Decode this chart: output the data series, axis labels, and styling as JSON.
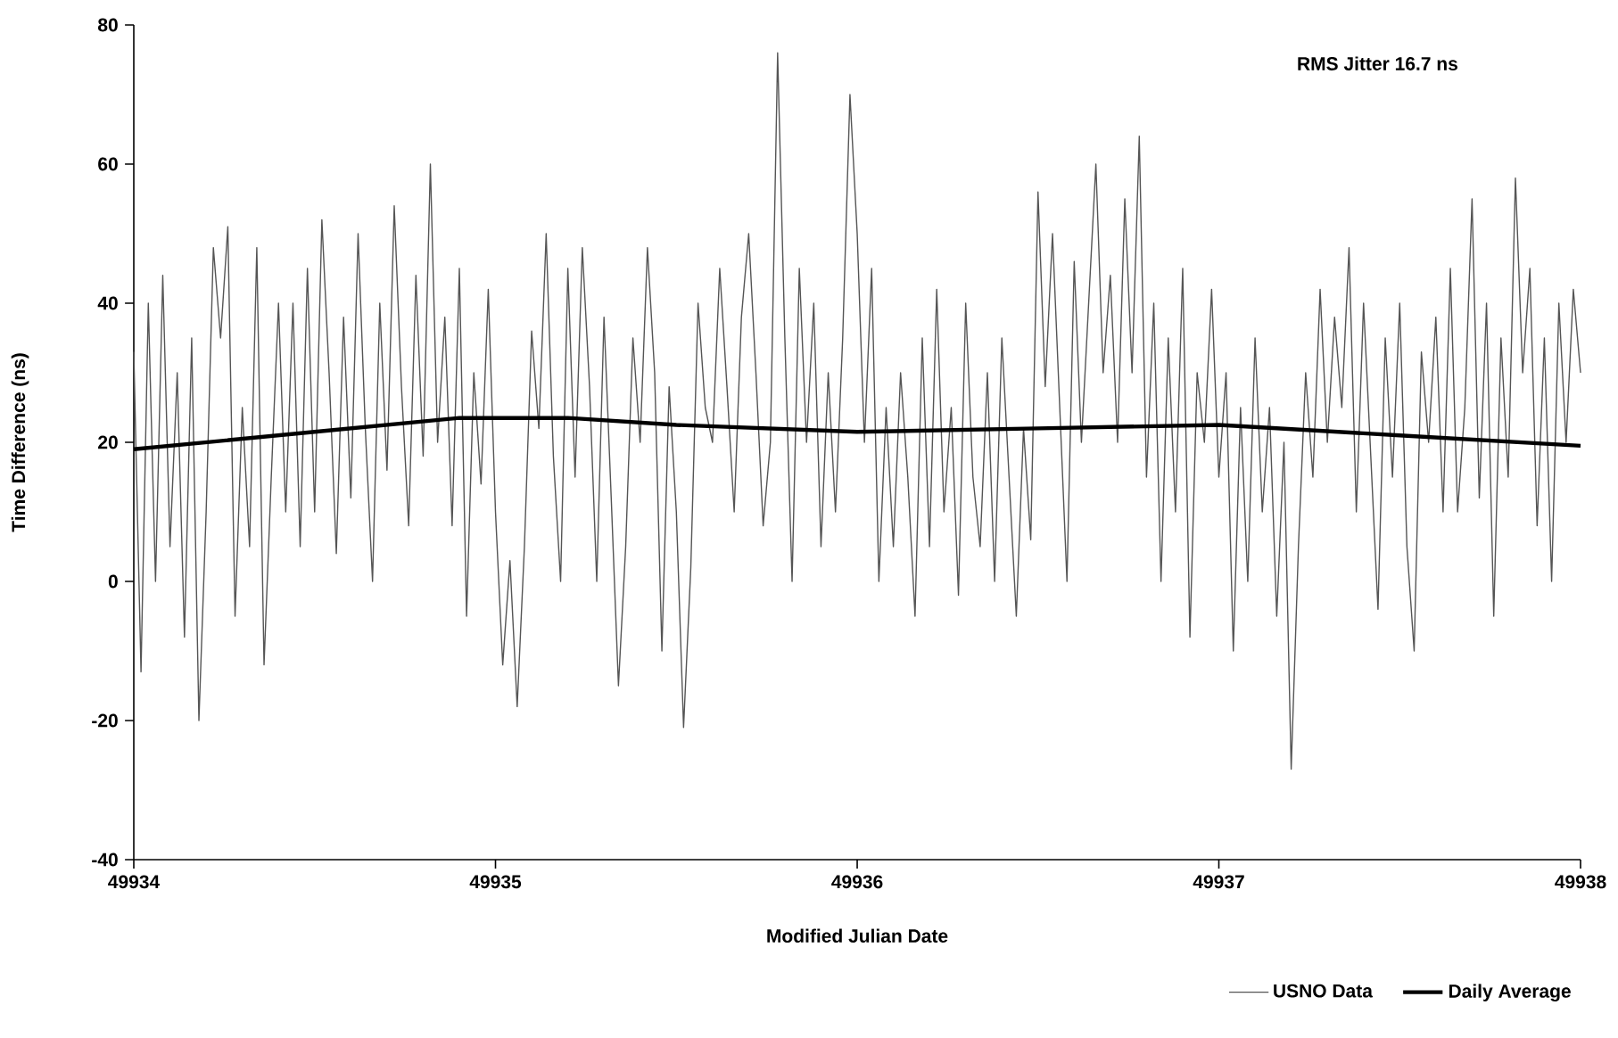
{
  "chart_data": {
    "type": "line",
    "xlabel": "Modified Julian Date",
    "ylabel": "Time Difference (ns)",
    "xlim": [
      49934,
      49938
    ],
    "ylim": [
      -40,
      80
    ],
    "xticks": [
      49934,
      49935,
      49936,
      49937,
      49938
    ],
    "yticks": [
      -40,
      -20,
      0,
      20,
      40,
      60,
      80
    ],
    "legend": "bottom right",
    "annotations": [
      "RMS Jitter 16.7 ns"
    ],
    "series": [
      {
        "name": "USNO Data",
        "color": "#555555",
        "x": [
          49934,
          49934.02,
          49934.04,
          49934.06,
          49934.08,
          49934.1,
          49934.12,
          49934.14,
          49934.16,
          49934.18,
          49934.2,
          49934.22,
          49934.24,
          49934.26,
          49934.28,
          49934.3,
          49934.32,
          49934.34,
          49934.36,
          49934.38,
          49934.4,
          49934.42,
          49934.44,
          49934.46,
          49934.48,
          49934.5,
          49934.52,
          49934.54,
          49934.56,
          49934.58,
          49934.6,
          49934.62,
          49934.64,
          49934.66,
          49934.68,
          49934.7,
          49934.72,
          49934.74,
          49934.76,
          49934.78,
          49934.8,
          49934.82,
          49934.84,
          49934.86,
          49934.88,
          49934.9,
          49934.92,
          49934.94,
          49934.96,
          49934.98,
          49935,
          49935.02,
          49935.04,
          49935.06,
          49935.08,
          49935.1,
          49935.12,
          49935.14,
          49935.16,
          49935.18,
          49935.2,
          49935.22,
          49935.24,
          49935.26,
          49935.28,
          49935.3,
          49935.32,
          49935.34,
          49935.36,
          49935.38,
          49935.4,
          49935.42,
          49935.44,
          49935.46,
          49935.48,
          49935.5,
          49935.52,
          49935.54,
          49935.56,
          49935.58,
          49935.6,
          49935.62,
          49935.64,
          49935.66,
          49935.68,
          49935.7,
          49935.72,
          49935.74,
          49935.76,
          49935.78,
          49935.8,
          49935.82,
          49935.84,
          49935.86,
          49935.88,
          49935.9,
          49935.92,
          49935.94,
          49935.96,
          49935.98,
          49936,
          49936.02,
          49936.04,
          49936.06,
          49936.08,
          49936.1,
          49936.12,
          49936.14,
          49936.16,
          49936.18,
          49936.2,
          49936.22,
          49936.24,
          49936.26,
          49936.28,
          49936.3,
          49936.32,
          49936.34,
          49936.36,
          49936.38,
          49936.4,
          49936.42,
          49936.44,
          49936.46,
          49936.48,
          49936.5,
          49936.52,
          49936.54,
          49936.56,
          49936.58,
          49936.6,
          49936.62,
          49936.64,
          49936.66,
          49936.68,
          49936.7,
          49936.72,
          49936.74,
          49936.76,
          49936.78,
          49936.8,
          49936.82,
          49936.84,
          49936.86,
          49936.88,
          49936.9,
          49936.92,
          49936.94,
          49936.96,
          49936.98,
          49937,
          49937.02,
          49937.04,
          49937.06,
          49937.08,
          49937.1,
          49937.12,
          49937.14,
          49937.16,
          49937.18,
          49937.2,
          49937.22,
          49937.24,
          49937.26,
          49937.28,
          49937.3,
          49937.32,
          49937.34,
          49937.36,
          49937.38,
          49937.4,
          49937.42,
          49937.44,
          49937.46,
          49937.48,
          49937.5,
          49937.52,
          49937.54,
          49937.56,
          49937.58,
          49937.6,
          49937.62,
          49937.64,
          49937.66,
          49937.68,
          49937.7,
          49937.72,
          49937.74,
          49937.76,
          49937.78,
          49937.8,
          49937.82,
          49937.84,
          49937.86,
          49937.88,
          49937.9,
          49937.92,
          49937.94,
          49937.96,
          49937.98,
          49938
        ],
        "values": [
          33,
          -13,
          40,
          0,
          44,
          5,
          30,
          -8,
          35,
          -20,
          10,
          48,
          35,
          51,
          -5,
          25,
          5,
          48,
          -12,
          15,
          40,
          10,
          40,
          5,
          45,
          10,
          52,
          30,
          4,
          38,
          12,
          50,
          22,
          0,
          40,
          16,
          54,
          28,
          8,
          44,
          18,
          60,
          20,
          38,
          8,
          45,
          -5,
          30,
          14,
          42,
          10,
          -12,
          3,
          -18,
          5,
          36,
          22,
          50,
          18,
          0,
          45,
          15,
          48,
          28,
          0,
          38,
          12,
          -15,
          5,
          35,
          20,
          48,
          30,
          -10,
          28,
          10,
          -21,
          2,
          40,
          25,
          20,
          45,
          28,
          10,
          38,
          50,
          30,
          8,
          20,
          76,
          35,
          0,
          45,
          20,
          40,
          5,
          30,
          10,
          35,
          70,
          50,
          20,
          45,
          0,
          25,
          5,
          30,
          15,
          -5,
          35,
          5,
          42,
          10,
          25,
          -2,
          40,
          15,
          5,
          30,
          0,
          35,
          15,
          -5,
          22,
          6,
          56,
          28,
          50,
          25,
          0,
          46,
          20,
          40,
          60,
          30,
          44,
          20,
          55,
          30,
          64,
          15,
          40,
          0,
          35,
          10,
          45,
          -8,
          30,
          20,
          42,
          15,
          30,
          -10,
          25,
          0,
          35,
          10,
          25,
          -5,
          20,
          -27,
          5,
          30,
          15,
          42,
          20,
          38,
          25,
          48,
          10,
          40,
          18,
          -4,
          35,
          15,
          40,
          5,
          -10,
          33,
          20,
          38,
          10,
          45,
          10,
          25,
          55,
          12,
          40,
          -5,
          35,
          15,
          58,
          30,
          45,
          8,
          35,
          0,
          40,
          20,
          42,
          30
        ]
      },
      {
        "name": "Daily Average",
        "color": "#000000",
        "x": [
          49934,
          49934.5,
          49934.9,
          49935.2,
          49935.5,
          49936,
          49936.5,
          49937,
          49937.5,
          49938
        ],
        "values": [
          19,
          21.5,
          23.5,
          23.5,
          22.5,
          21.5,
          22,
          22.5,
          21,
          19.5
        ]
      }
    ]
  }
}
